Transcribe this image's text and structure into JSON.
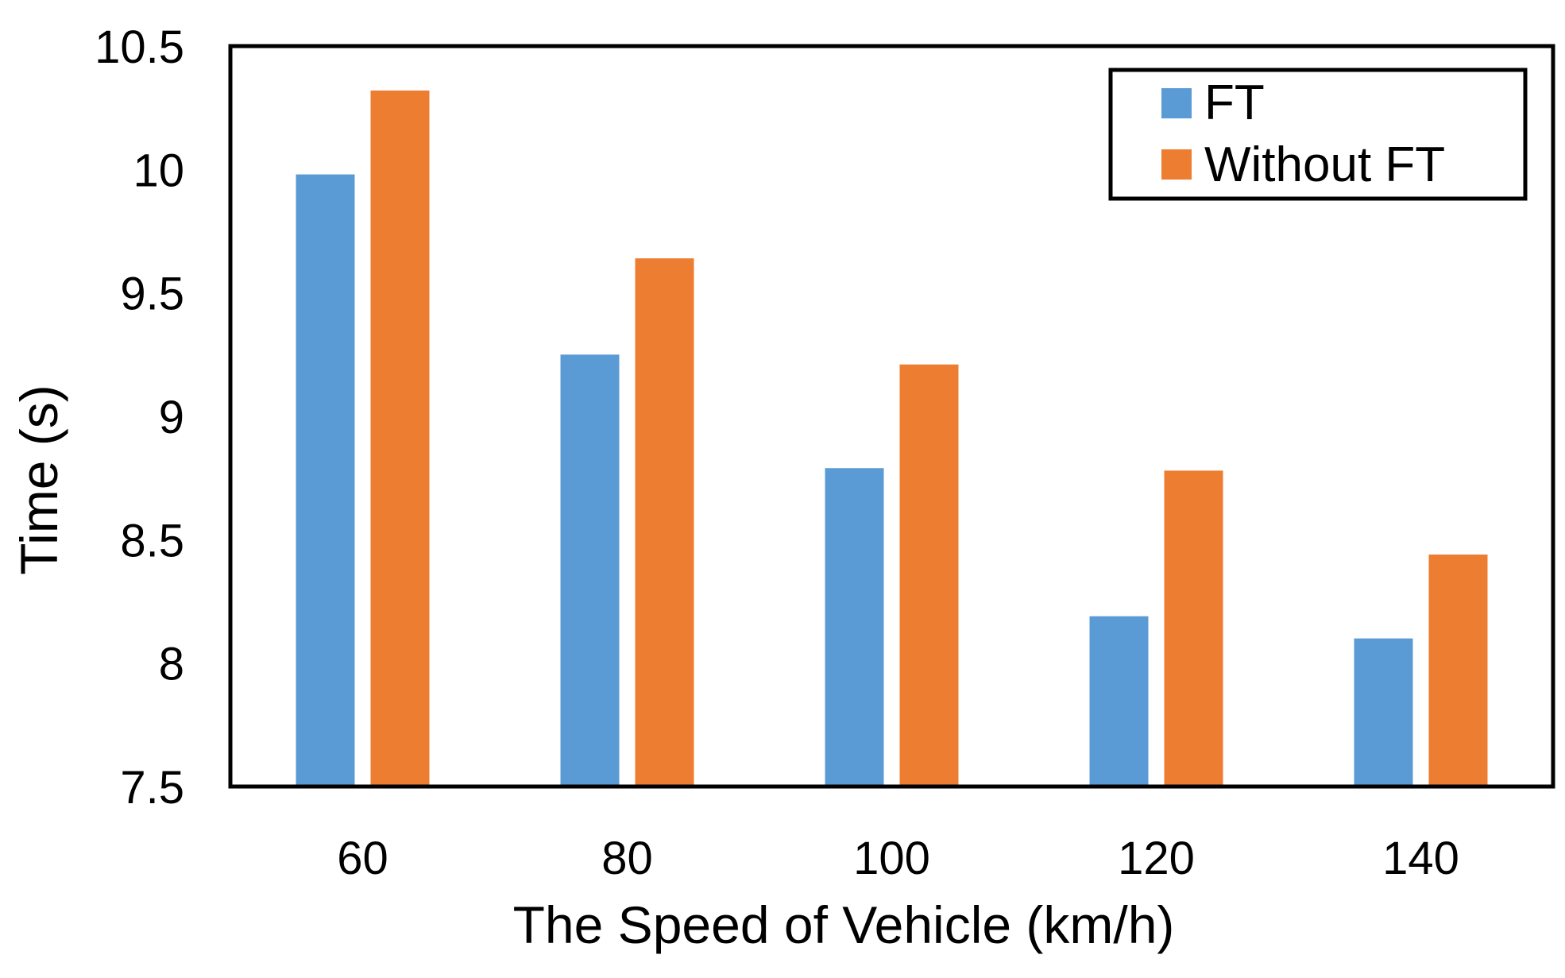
{
  "chart_data": {
    "type": "bar",
    "title": "",
    "xlabel": "The Speed of Vehicle (km/h)",
    "ylabel": "Time (s)",
    "categories": [
      "60",
      "80",
      "100",
      "120",
      "140"
    ],
    "ylim": [
      7.5,
      10.5
    ],
    "yticks": [
      "7.5",
      "8",
      "8.5",
      "9",
      "9.5",
      "10",
      "10.5"
    ],
    "grid": false,
    "legend_position": "top-right",
    "series": [
      {
        "name": "FT",
        "color": "#5b9bd5",
        "values": [
          9.98,
          9.25,
          8.79,
          8.19,
          8.1
        ]
      },
      {
        "name": "Without FT",
        "color": "#ed7d31",
        "values": [
          10.32,
          9.64,
          9.21,
          8.78,
          8.44
        ]
      }
    ]
  }
}
